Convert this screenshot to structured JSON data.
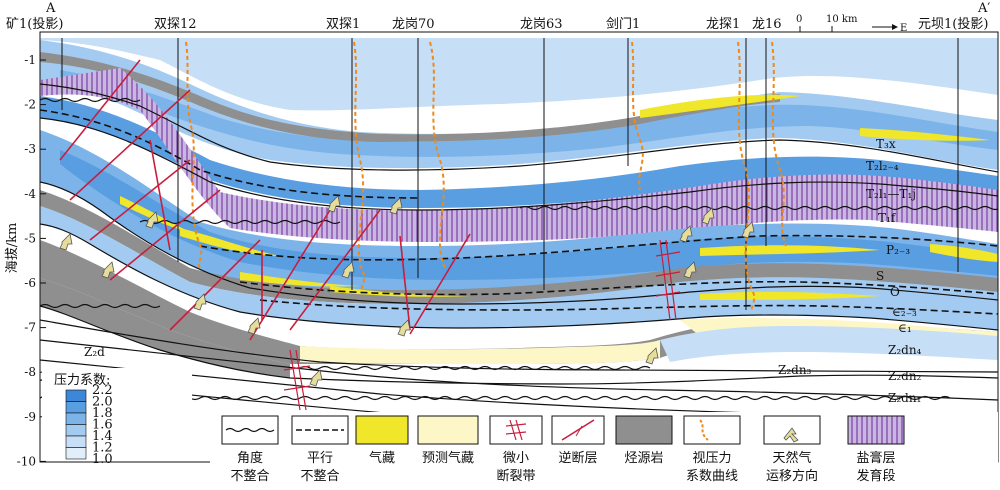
{
  "header": {
    "left_marker": "A",
    "right_marker": "A′",
    "scale_zero": "0",
    "scale_ten": "10 km",
    "direction": "E"
  },
  "wells": [
    {
      "name": "矿1(投影)"
    },
    {
      "name": "双探12"
    },
    {
      "name": "双探1"
    },
    {
      "name": "龙岗70"
    },
    {
      "name": "龙岗63"
    },
    {
      "name": "剑门1"
    },
    {
      "name": "龙探1"
    },
    {
      "name": "龙16"
    },
    {
      "name": "元坝1(投影)"
    }
  ],
  "axis": {
    "ylabel": "海拔/km",
    "ticks": [
      "-1",
      "-2",
      "-3",
      "-4",
      "-5",
      "-6",
      "-7",
      "-8",
      "-9",
      "-10"
    ]
  },
  "strata_labels": [
    {
      "id": "T3x",
      "text": "T₃x"
    },
    {
      "id": "T2l2-4",
      "text": "T₂l₂₋₄"
    },
    {
      "id": "T2l1-T1j",
      "text": "T₂l₁—T₁j"
    },
    {
      "id": "T1f",
      "text": "T₁f"
    },
    {
      "id": "P2-3",
      "text": "P₂₋₃"
    },
    {
      "id": "S",
      "text": "S"
    },
    {
      "id": "O",
      "text": "O"
    },
    {
      "id": "C2-3",
      "text": "∈₂₋₃"
    },
    {
      "id": "C1",
      "text": "∈₁"
    },
    {
      "id": "Z2dn4",
      "text": "Z₂dn₄"
    },
    {
      "id": "Z2dn3",
      "text": "Z₂dn₃"
    },
    {
      "id": "Z2dn2",
      "text": "Z₂dn₂"
    },
    {
      "id": "Z2dn1",
      "text": "Z₂dn₁"
    },
    {
      "id": "Z2d",
      "text": "Z₂d"
    }
  ],
  "pressure_legend": {
    "title": "压力系数:",
    "values": [
      "2.2",
      "2.0",
      "1.8",
      "1.6",
      "1.4",
      "1.2",
      "1.0"
    ],
    "colors": [
      "#3d87d8",
      "#5a9ee2",
      "#7cb4ea",
      "#a3cbf1",
      "#c6def6",
      "#e3eefb"
    ]
  },
  "legend": [
    {
      "id": "angular",
      "line1": "角度",
      "line2": "不整合"
    },
    {
      "id": "parallel",
      "line1": "平行",
      "line2": "不整合"
    },
    {
      "id": "gas",
      "line1": "气藏",
      "line2": ""
    },
    {
      "id": "predicted",
      "line1": "预测气藏",
      "line2": ""
    },
    {
      "id": "microfault",
      "line1": "微小",
      "line2": "断裂带"
    },
    {
      "id": "reverse",
      "line1": "逆断层",
      "line2": ""
    },
    {
      "id": "source",
      "line1": "烃源岩",
      "line2": ""
    },
    {
      "id": "curve",
      "line1": "视压力",
      "line2": "系数曲线"
    },
    {
      "id": "migration",
      "line1": "天然气",
      "line2": "运移方向"
    },
    {
      "id": "salt",
      "line1": "盐膏层",
      "line2": "发育段"
    }
  ],
  "colors": {
    "gas": "#f0e62a",
    "predicted": "#fdf7c8",
    "source": "#8f8f8f",
    "curve": "#ec8a1c",
    "fault": "#c81e3c",
    "salt": "#7b3fa6",
    "arrow": "#e6dd9c"
  }
}
